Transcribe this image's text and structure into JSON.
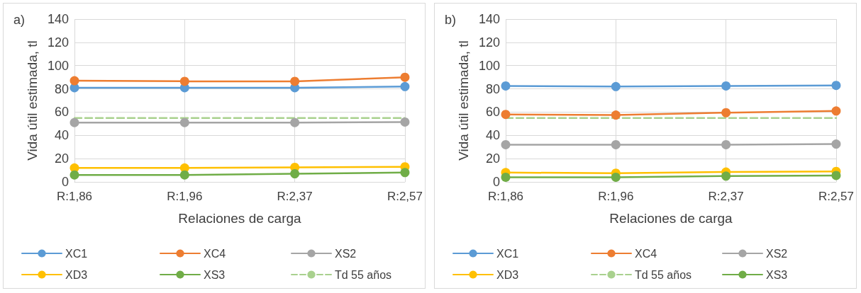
{
  "chart_data": [
    {
      "type": "line",
      "annotations": [
        "a)"
      ],
      "xlabel": "Relaciones de carga",
      "ylabel": "Vida útil estimada, tl",
      "categories": [
        "R:1,86",
        "R:1,96",
        "R:2,37",
        "R:2,57"
      ],
      "ylim": [
        0,
        140
      ],
      "yticks": [
        0,
        20,
        40,
        60,
        80,
        100,
        120,
        140
      ],
      "grid": true,
      "legend": "bottom",
      "marker": "circle",
      "series": [
        {
          "name": "XC1",
          "color": "#5b9bd5",
          "values": [
            81,
            81,
            81,
            82
          ]
        },
        {
          "name": "XC4",
          "color": "#ed7d31",
          "values": [
            87,
            86.5,
            86.5,
            90
          ]
        },
        {
          "name": "XS2",
          "color": "#a5a5a5",
          "values": [
            51,
            51,
            51,
            51.5
          ]
        },
        {
          "name": "XD3",
          "color": "#ffc000",
          "values": [
            12,
            12,
            12.5,
            13
          ]
        },
        {
          "name": "XS3",
          "color": "#70ad47",
          "values": [
            6,
            6,
            7,
            8
          ]
        },
        {
          "name": "Td 55 años",
          "color": "#a9d18e",
          "values": [
            55,
            55,
            55,
            55
          ],
          "marker": "none",
          "line_style": "dashed"
        }
      ]
    },
    {
      "type": "line",
      "annotations": [
        "b)"
      ],
      "xlabel": "Relaciones de carga",
      "ylabel": "Vida útil estimada, tl",
      "categories": [
        "R:1,86",
        "R:1,96",
        "R:2,37",
        "R:2,57"
      ],
      "ylim": [
        0,
        140
      ],
      "yticks": [
        0,
        20,
        40,
        60,
        80,
        100,
        120,
        140
      ],
      "grid": true,
      "legend": "bottom",
      "marker": "circle",
      "series": [
        {
          "name": "XC1",
          "color": "#5b9bd5",
          "values": [
            82.5,
            82,
            82.5,
            83
          ]
        },
        {
          "name": "XC4",
          "color": "#ed7d31",
          "values": [
            58,
            57.5,
            59.5,
            61
          ]
        },
        {
          "name": "XS2",
          "color": "#a5a5a5",
          "values": [
            32,
            32,
            32,
            32.5
          ]
        },
        {
          "name": "XD3",
          "color": "#ffc000",
          "values": [
            8,
            7.5,
            8.5,
            9
          ]
        },
        {
          "name": "Td 55 años",
          "color": "#a9d18e",
          "values": [
            55,
            55,
            55,
            55
          ],
          "marker": "none",
          "line_style": "dashed"
        },
        {
          "name": "XS3",
          "color": "#70ad47",
          "values": [
            4,
            4,
            5,
            5.5
          ]
        }
      ]
    }
  ]
}
